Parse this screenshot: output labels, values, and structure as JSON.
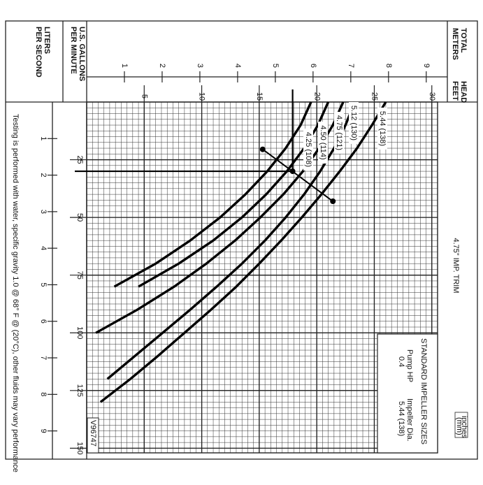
{
  "chart_data": {
    "type": "line",
    "title": "4.75” IMP. TRIM",
    "head_label_parts": [
      "TOTAL",
      "HEAD"
    ],
    "y_label": "FEET",
    "y2_label": "METERS",
    "x_label_lines": [
      "U.S. GALLONS",
      "PER MINUTE"
    ],
    "x2_label_lines": [
      "LITERS",
      "PER SECOND"
    ],
    "x": [
      0,
      10,
      20,
      30,
      40,
      50,
      60,
      70,
      80,
      90,
      100,
      110,
      120,
      130
    ],
    "series": [
      {
        "name": "4.25 (108)",
        "color": "#000000",
        "values": [
          19.5,
          18.6,
          17.3,
          15.7,
          13.8,
          11.6,
          9.0,
          6.0,
          2.4,
          null,
          null,
          null,
          null,
          null
        ]
      },
      {
        "name": "4.50 (114)",
        "color": "#000000",
        "values": [
          21,
          20.1,
          18.9,
          17.4,
          15.6,
          13.5,
          11.0,
          8.0,
          4.5,
          null,
          null,
          null,
          null,
          null
        ]
      },
      {
        "name": "4.75 (121)",
        "color": "#000000",
        "values": [
          22.3,
          21.4,
          20.2,
          18.8,
          17.1,
          15.1,
          12.9,
          10.4,
          7.6,
          4.4,
          0.8,
          null,
          null,
          null
        ]
      },
      {
        "name": "5.12 (130)",
        "color": "#000000",
        "values": [
          23.3,
          22.5,
          21.5,
          20.3,
          18.9,
          17.3,
          15.5,
          13.5,
          11.3,
          9.0,
          6.6,
          4.2,
          1.8,
          null
        ]
      },
      {
        "name": "5.44 (138)",
        "color": "#000000",
        "values": [
          26,
          24.8,
          23.5,
          22,
          20.4,
          18.7,
          16.9,
          15,
          13,
          10.8,
          8.5,
          6.2,
          3.8,
          1.2
        ]
      }
    ],
    "operating_point": {
      "flow": 30,
      "head": 17.9
    },
    "system_line": {
      "flow": [
        20.5,
        43
      ],
      "head": [
        15.3,
        21.4
      ]
    },
    "xlim": [
      0,
      152
    ],
    "xticks": [
      25,
      50,
      75,
      100,
      125,
      150
    ],
    "x2lim": [
      0,
      9.6
    ],
    "x2ticks": [
      1,
      2,
      3,
      4,
      5,
      6,
      7,
      8,
      9
    ],
    "ylim": [
      0,
      30.5
    ],
    "yticks": [
      5,
      10,
      15,
      20,
      25,
      30
    ],
    "y2lim": [
      0,
      9.3
    ],
    "y2ticks": [
      1,
      2,
      3,
      4,
      5,
      6,
      7,
      8,
      9
    ],
    "grid": true,
    "legend": {
      "title": "STANDARD IMPELLER SIZES",
      "columns": [
        {
          "header": "Pump HP",
          "value": "0.4"
        },
        {
          "header": "Impeller Dia.",
          "value": "5.44 (138)"
        }
      ]
    },
    "code": "V96747",
    "unit_note": [
      "inches",
      "(mm)"
    ],
    "footnote": "Testing is performed with water, specific gravity 1.0 @ 68° F @ (20°C), other fluids may vary performance"
  }
}
